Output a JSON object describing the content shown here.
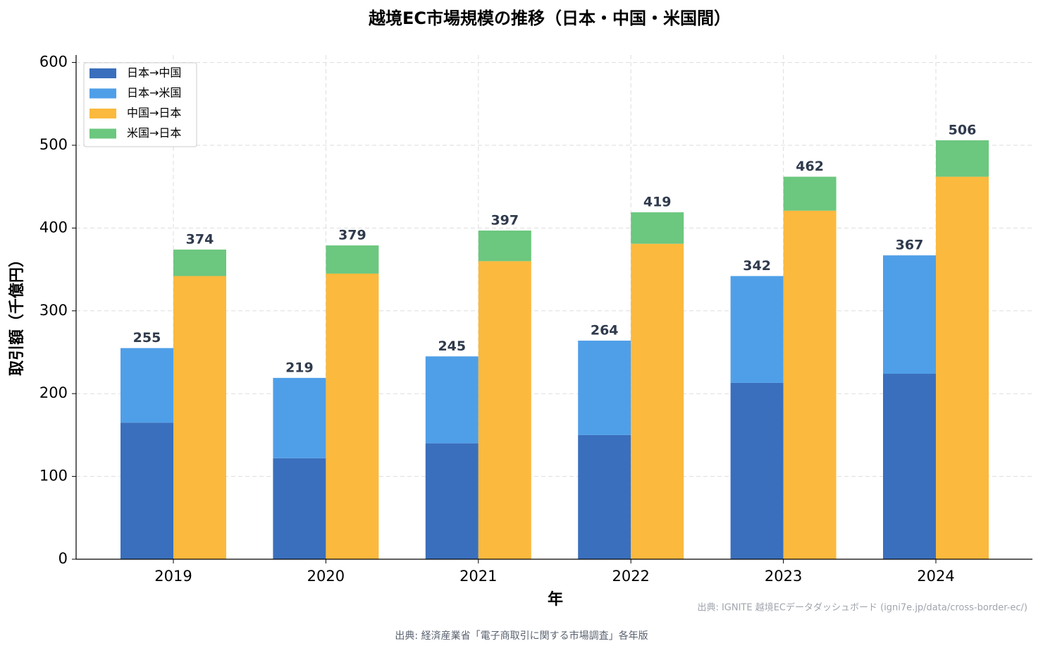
{
  "chart_data": {
    "type": "stacked_grouped_bar",
    "title": "越境EC市場規模の推移（日本・中国・米国間）",
    "x_label": "年",
    "y_label": "取引額（千億円）",
    "categories": [
      "2019",
      "2020",
      "2021",
      "2022",
      "2023",
      "2024"
    ],
    "series": [
      {
        "name": "日本→中国",
        "color": "#3a6fbd",
        "stack": 0,
        "values": [
          165,
          122,
          140,
          150,
          213,
          224
        ]
      },
      {
        "name": "日本→米国",
        "color": "#4f9fe8",
        "stack": 0,
        "values": [
          90,
          97,
          105,
          114,
          129,
          143
        ]
      },
      {
        "name": "中国→日本",
        "color": "#fbb93e",
        "stack": 1,
        "values": [
          342,
          345,
          360,
          381,
          421,
          462
        ]
      },
      {
        "name": "米国→日本",
        "color": "#6cc77f",
        "stack": 1,
        "values": [
          32,
          34,
          37,
          38,
          41,
          44
        ]
      }
    ],
    "stack_totals": [
      [
        255,
        219,
        245,
        264,
        342,
        367
      ],
      [
        374,
        379,
        397,
        419,
        462,
        506
      ]
    ],
    "ylim": [
      0,
      609
    ],
    "yticks": [
      0,
      100,
      200,
      300,
      400,
      500,
      600
    ],
    "grid": true,
    "legend": "upper-left",
    "source_note": "出典: IGNITE 越境ECデータダッシュボード (igni7e.jp/data/cross-border-ec/)",
    "footer": "出典: 経済産業省「電子商取引に関する市場調査」各年版"
  }
}
